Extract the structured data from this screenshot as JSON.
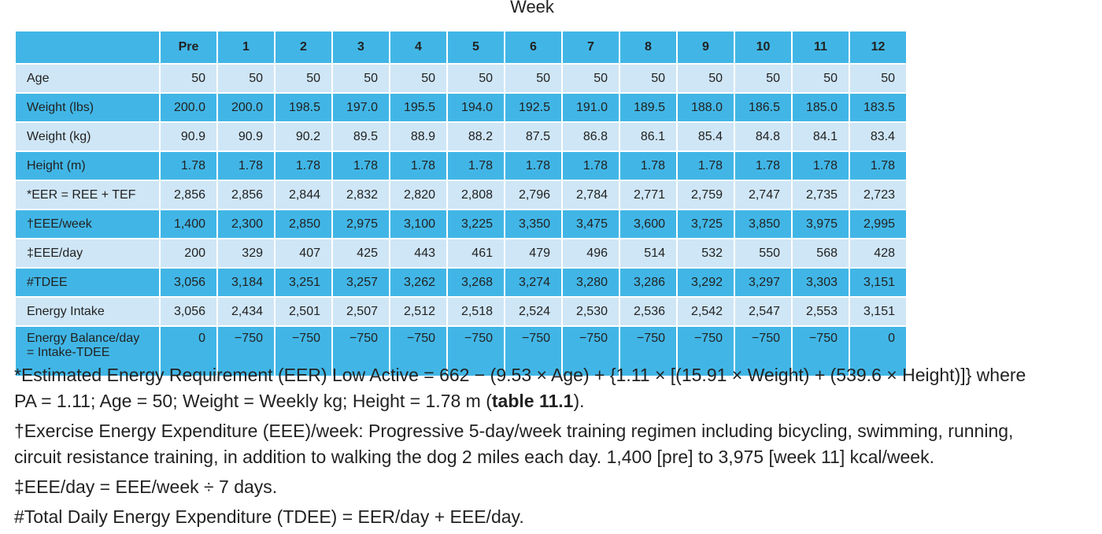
{
  "caption": "Week",
  "table": {
    "columns": [
      "Pre",
      "1",
      "2",
      "3",
      "4",
      "5",
      "6",
      "7",
      "8",
      "9",
      "10",
      "11",
      "12"
    ],
    "rows": [
      {
        "label": "Age",
        "cells": [
          "50",
          "50",
          "50",
          "50",
          "50",
          "50",
          "50",
          "50",
          "50",
          "50",
          "50",
          "50",
          "50"
        ]
      },
      {
        "label": "Weight (lbs)",
        "cells": [
          "200.0",
          "200.0",
          "198.5",
          "197.0",
          "195.5",
          "194.0",
          "192.5",
          "191.0",
          "189.5",
          "188.0",
          "186.5",
          "185.0",
          "183.5"
        ]
      },
      {
        "label": "Weight (kg)",
        "cells": [
          "90.9",
          "90.9",
          "90.2",
          "89.5",
          "88.9",
          "88.2",
          "87.5",
          "86.8",
          "86.1",
          "85.4",
          "84.8",
          "84.1",
          "83.4"
        ]
      },
      {
        "label": "Height (m)",
        "cells": [
          "1.78",
          "1.78",
          "1.78",
          "1.78",
          "1.78",
          "1.78",
          "1.78",
          "1.78",
          "1.78",
          "1.78",
          "1.78",
          "1.78",
          "1.78"
        ]
      },
      {
        "label": "*EER = REE + TEF",
        "cells": [
          "2,856",
          "2,856",
          "2,844",
          "2,832",
          "2,820",
          "2,808",
          "2,796",
          "2,784",
          "2,771",
          "2,759",
          "2,747",
          "2,735",
          "2,723"
        ]
      },
      {
        "label": "†EEE/week",
        "cells": [
          "1,400",
          "2,300",
          "2,850",
          "2,975",
          "3,100",
          "3,225",
          "3,350",
          "3,475",
          "3,600",
          "3,725",
          "3,850",
          "3,975",
          "2,995"
        ]
      },
      {
        "label": "‡EEE/day",
        "cells": [
          "200",
          "329",
          "407",
          "425",
          "443",
          "461",
          "479",
          "496",
          "514",
          "532",
          "550",
          "568",
          "428"
        ]
      },
      {
        "label": "#TDEE",
        "cells": [
          "3,056",
          "3,184",
          "3,251",
          "3,257",
          "3,262",
          "3,268",
          "3,274",
          "3,280",
          "3,286",
          "3,292",
          "3,297",
          "3,303",
          "3,151"
        ]
      },
      {
        "label": "Energy Intake",
        "cells": [
          "3,056",
          "2,434",
          "2,501",
          "2,507",
          "2,512",
          "2,518",
          "2,524",
          "2,530",
          "2,536",
          "2,542",
          "2,547",
          "2,553",
          "3,151"
        ]
      },
      {
        "label": "Energy Balance/day = Intake-TDEE",
        "cells": [
          "0",
          "−750",
          "−750",
          "−750",
          "−750",
          "−750",
          "−750",
          "−750",
          "−750",
          "−750",
          "−750",
          "−750",
          "0"
        ]
      }
    ]
  },
  "footnotes": [
    {
      "before": "*Estimated Energy Requirement (EER) Low Active = 662 − (9.53 × Age) + {1.11 × [(15.91 × Weight) + (539.6 × Height)]} where PA = 1.11; Age = 50; Weight = Weekly kg; Height = 1.78 m (",
      "bold": "table 11.1",
      "after": ")."
    },
    "†Exercise Energy Expenditure (EEE)/week: Progressive 5-day/week training regimen including bicycling, swimming, running, circuit resistance training, in addition to walking the dog 2 miles each day. 1,400 [pre] to 3,975 [week 11] kcal/week.",
    "‡EEE/day = EEE/week ÷ 7 days.",
    "#Total Daily Energy Expenditure (TDEE) = EER/day + EEE/day."
  ]
}
